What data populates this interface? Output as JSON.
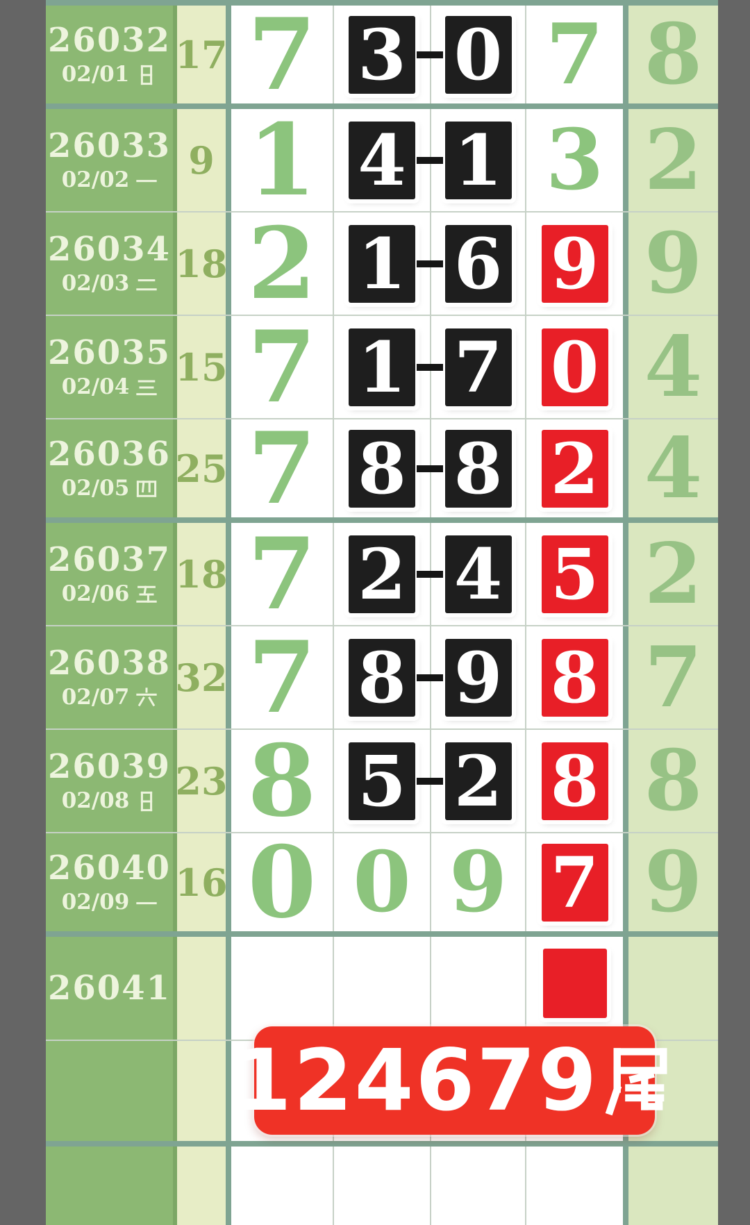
{
  "banner": {
    "text": "124679尾"
  },
  "colors": {
    "background_gray": "#656565",
    "green_column": "#8CB873",
    "divider_green": "#7CA765",
    "pale_column": "#E7EDC6",
    "tail_column": "#DAE7BF",
    "separator_teal": "#7FA492",
    "thin_border": "#C6D1C6",
    "digit_green": "#8CC47D",
    "count_green": "#8FAF60",
    "tail_green": "#97C285",
    "white_text": "#EDF4DD",
    "black_box": "#1E1E1E",
    "red_box": "#E81F27",
    "banner_red": "#EF3226"
  },
  "table": {
    "rows": [
      {
        "period": "26032",
        "date": "02/01",
        "weekday": "日",
        "count": "17",
        "c1": "7",
        "c2": {
          "v": "3",
          "s": "black"
        },
        "c3": {
          "v": "0",
          "s": "black"
        },
        "dash": true,
        "c4": {
          "v": "7",
          "s": "green"
        },
        "c5": "8",
        "group_end": true
      },
      {
        "period": "26033",
        "date": "02/02",
        "weekday": "一",
        "count": "9",
        "c1": "1",
        "c2": {
          "v": "4",
          "s": "black"
        },
        "c3": {
          "v": "1",
          "s": "black"
        },
        "dash": true,
        "c4": {
          "v": "3",
          "s": "green"
        },
        "c5": "2"
      },
      {
        "period": "26034",
        "date": "02/03",
        "weekday": "二",
        "count": "18",
        "c1": "2",
        "c2": {
          "v": "1",
          "s": "black"
        },
        "c3": {
          "v": "6",
          "s": "black"
        },
        "dash": true,
        "c4": {
          "v": "9",
          "s": "red"
        },
        "c5": "9"
      },
      {
        "period": "26035",
        "date": "02/04",
        "weekday": "三",
        "count": "15",
        "c1": "7",
        "c2": {
          "v": "1",
          "s": "black"
        },
        "c3": {
          "v": "7",
          "s": "black"
        },
        "dash": true,
        "c4": {
          "v": "0",
          "s": "red"
        },
        "c5": "4"
      },
      {
        "period": "26036",
        "date": "02/05",
        "weekday": "四",
        "count": "25",
        "c1": "7",
        "c2": {
          "v": "8",
          "s": "black"
        },
        "c3": {
          "v": "8",
          "s": "black"
        },
        "dash": true,
        "c4": {
          "v": "2",
          "s": "red"
        },
        "c5": "4",
        "group_end": true
      },
      {
        "period": "26037",
        "date": "02/06",
        "weekday": "五",
        "count": "18",
        "c1": "7",
        "c2": {
          "v": "2",
          "s": "black"
        },
        "c3": {
          "v": "4",
          "s": "black"
        },
        "dash": true,
        "c4": {
          "v": "5",
          "s": "red"
        },
        "c5": "2"
      },
      {
        "period": "26038",
        "date": "02/07",
        "weekday": "六",
        "count": "32",
        "c1": "7",
        "c2": {
          "v": "8",
          "s": "black"
        },
        "c3": {
          "v": "9",
          "s": "black"
        },
        "dash": true,
        "c4": {
          "v": "8",
          "s": "red"
        },
        "c5": "7"
      },
      {
        "period": "26039",
        "date": "02/08",
        "weekday": "日",
        "count": "23",
        "c1": "8",
        "c2": {
          "v": "5",
          "s": "black"
        },
        "c3": {
          "v": "2",
          "s": "black"
        },
        "dash": true,
        "c4": {
          "v": "8",
          "s": "red"
        },
        "c5": "8"
      },
      {
        "period": "26040",
        "date": "02/09",
        "weekday": "一",
        "count": "16",
        "c1": "0",
        "c2": {
          "v": "0",
          "s": "green"
        },
        "c3": {
          "v": "9",
          "s": "green"
        },
        "dash": false,
        "c4": {
          "v": "7",
          "s": "red"
        },
        "c5": "9",
        "group_end": true
      },
      {
        "period": "26041",
        "date": "",
        "weekday": "",
        "count": "",
        "c1": "",
        "c2": null,
        "c3": null,
        "dash": false,
        "c4": {
          "v": "",
          "s": "red-empty"
        },
        "c5": "",
        "pending": true
      },
      {
        "filler": true,
        "group_end": true
      },
      {
        "filler": true,
        "last": true
      }
    ]
  },
  "chart_data": {
    "type": "table",
    "columns": [
      "period",
      "date",
      "sum",
      "pos1",
      "pos2_boxed_black",
      "pos3_boxed_black",
      "pos4",
      "tail"
    ],
    "rows": [
      [
        "26032",
        "02/01 日",
        "17",
        "7",
        "3",
        "0",
        "7",
        "8"
      ],
      [
        "26033",
        "02/02 一",
        "9",
        "1",
        "4",
        "1",
        "3",
        "2"
      ],
      [
        "26034",
        "02/03 二",
        "18",
        "2",
        "1",
        "6",
        "9",
        "9"
      ],
      [
        "26035",
        "02/04 三",
        "15",
        "7",
        "1",
        "7",
        "0",
        "4"
      ],
      [
        "26036",
        "02/05 四",
        "25",
        "7",
        "8",
        "8",
        "2",
        "4"
      ],
      [
        "26037",
        "02/06 五",
        "18",
        "7",
        "2",
        "4",
        "5",
        "2"
      ],
      [
        "26038",
        "02/07 六",
        "32",
        "7",
        "8",
        "9",
        "8",
        "7"
      ],
      [
        "26039",
        "02/08 日",
        "23",
        "8",
        "5",
        "2",
        "8",
        "8"
      ],
      [
        "26040",
        "02/09 一",
        "16",
        "0",
        "0",
        "9",
        "7",
        "9"
      ],
      [
        "26041",
        "",
        "",
        "",
        "",
        "",
        "",
        ""
      ]
    ],
    "red_highlighted_pos4": [
      "26034:9",
      "26035:0",
      "26036:2",
      "26037:5",
      "26038:8",
      "26039:8",
      "26040:7",
      "26041:(empty box)"
    ],
    "annotations": [
      "124679尾"
    ],
    "layout": {
      "group_separators_after": [
        "26032",
        "26036",
        "26040"
      ],
      "legend": "none",
      "grid": "on"
    }
  }
}
